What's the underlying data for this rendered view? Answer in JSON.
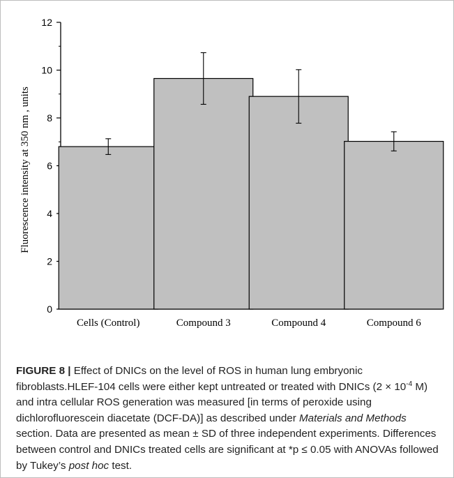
{
  "chart_data": {
    "type": "bar",
    "title": "",
    "xlabel": "",
    "ylabel": "Fluorescence intensity at 350 nm , units",
    "categories": [
      "Cells (Control)",
      "Compound 3",
      "Compound 4",
      "Compound 6"
    ],
    "values": [
      6.8,
      9.65,
      8.9,
      7.02
    ],
    "errors": [
      0.33,
      1.08,
      1.12,
      0.4
    ],
    "ylim": [
      0,
      12
    ],
    "yticks": [
      "0",
      "2",
      "4",
      "6",
      "8",
      "10",
      "12"
    ],
    "bar_color": "#c0c0c0",
    "grid": false,
    "legend": "none"
  },
  "caption": {
    "label": "FIGURE 8 |",
    "s1": " Effect of DNICs on the level of ROS in human lung embryonic fibroblasts.HLEF-104 cells were either kept untreated or treated with DNICs (2 × 10",
    "exp": "-4",
    "s2": " M) and intra cellular ROS generation was measured [in terms of peroxide using dichlorofluorescein diacetate (DCF-DA)] as described under ",
    "ital1": "Materials and Methods",
    "s3": " section. Data are presented as mean ± SD of three independent experiments. Differences between control and DNICs treated cells are significant at *p ≤ 0.05 with ANOVAs followed by Tukey’s ",
    "ital2": "post hoc",
    "s4": " test."
  }
}
